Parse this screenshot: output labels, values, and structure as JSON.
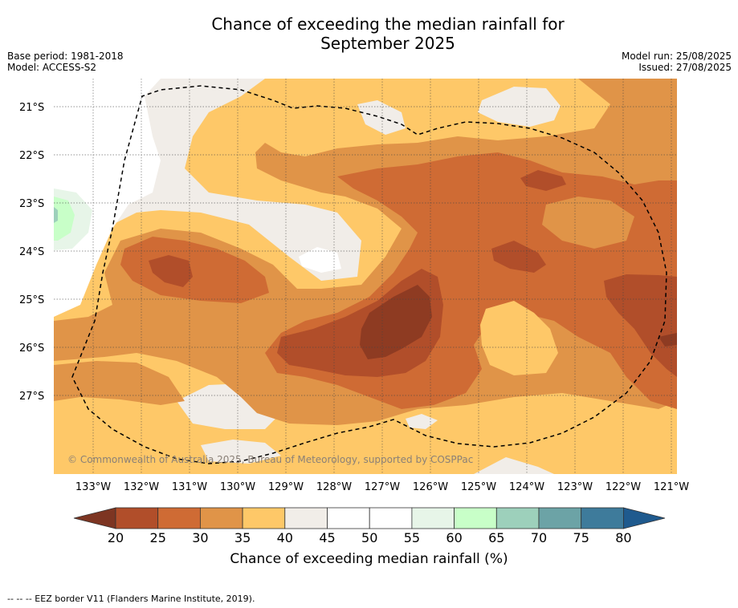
{
  "header": {
    "title_line1": "Chance of exceeding the median rainfall for",
    "title_line2": "September 2025",
    "base_period": "Base period: 1981-2018",
    "model": "Model: ACCESS-S2",
    "model_run": "Model run: 25/08/2025",
    "issued": "Issued: 27/08/2025"
  },
  "map": {
    "x_ticks": [
      "133°W",
      "132°W",
      "131°W",
      "130°W",
      "129°W",
      "128°W",
      "127°W",
      "126°W",
      "125°W",
      "124°W",
      "123°W",
      "122°W",
      "121°W"
    ],
    "y_ticks": [
      "21°S",
      "22°S",
      "23°S",
      "24°S",
      "25°S",
      "26°S",
      "27°S"
    ],
    "copyright": "© Commonwealth of Australia 2025, Bureau of Meteorology, supported by COSPPac",
    "colors": {
      "c20": "#8e3b22",
      "c25": "#b14e2a",
      "c30": "#cf6b34",
      "c35": "#e09448",
      "c40": "#fec868",
      "c45": "#f1ede8",
      "c50": "#ffffff",
      "c55": "#ffffff",
      "c60": "#e7f5e8",
      "c65": "#c8ffc8",
      "c70": "#9dd0bb",
      "c75": "#6ca3a6",
      "c80": "#3e7b9b",
      "below": "#7d3522",
      "above": "#1f5a8e"
    }
  },
  "colorbar": {
    "ticks": [
      "20",
      "25",
      "30",
      "35",
      "40",
      "45",
      "50",
      "55",
      "60",
      "65",
      "70",
      "75",
      "80"
    ],
    "label": "Chance of exceeding median rainfall (%)"
  },
  "footer": {
    "eez_note": "--  --  -- EEZ border V11 (Flanders Marine Institute, 2019)."
  }
}
